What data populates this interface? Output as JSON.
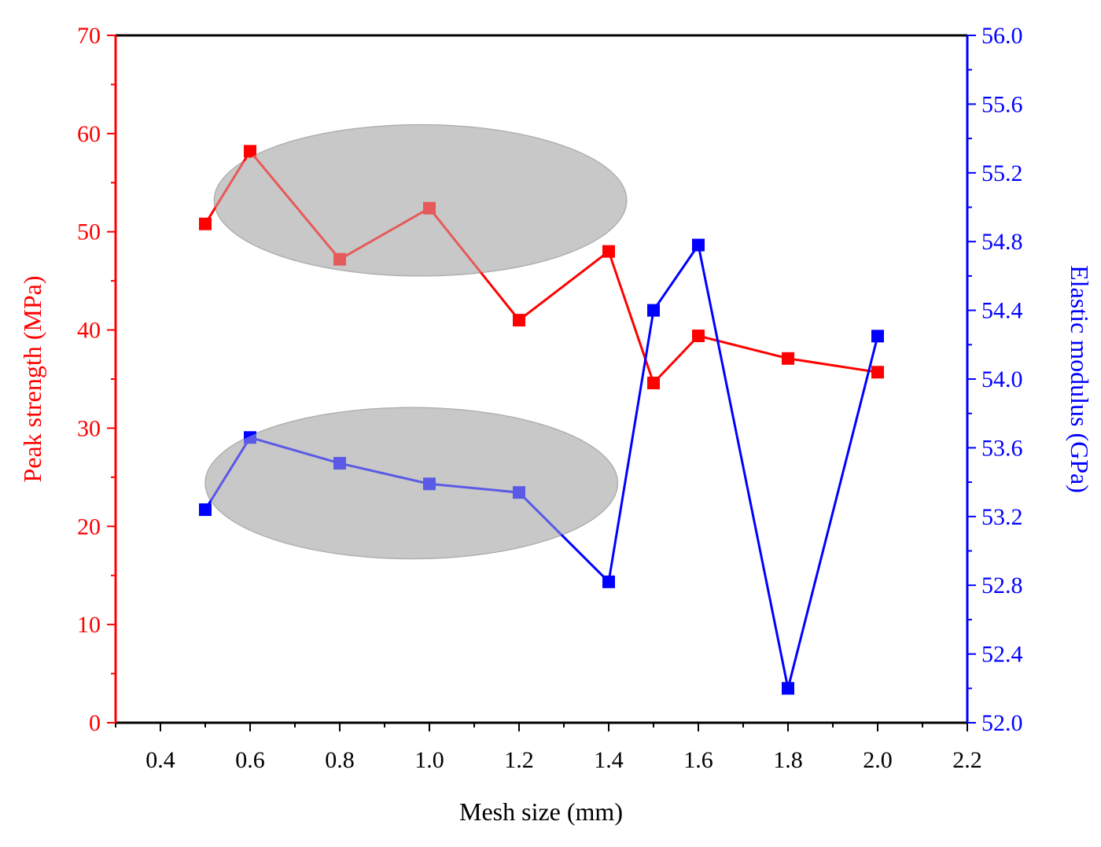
{
  "chart_data": {
    "type": "line",
    "title": "",
    "xlabel": "Mesh size (mm)",
    "ylabel_left": "Peak strength (MPa)",
    "ylabel_right": "Elastic modulus (GPa)",
    "xlim": [
      0.3,
      2.2
    ],
    "ylim_left": [
      0,
      70
    ],
    "ylim_right": [
      52.0,
      56.0
    ],
    "x_ticks": [
      "0.4",
      "0.6",
      "0.8",
      "1.0",
      "1.2",
      "1.4",
      "1.6",
      "1.8",
      "2.0",
      "2.2"
    ],
    "y_left_ticks": [
      "0",
      "10",
      "20",
      "30",
      "40",
      "50",
      "60",
      "70"
    ],
    "y_right_ticks": [
      "52.0",
      "52.4",
      "52.8",
      "53.2",
      "53.6",
      "54.0",
      "54.4",
      "54.8",
      "55.2",
      "55.6",
      "56.0"
    ],
    "x": [
      0.5,
      0.6,
      0.8,
      1.0,
      1.2,
      1.4,
      1.5,
      1.6,
      1.8,
      2.0
    ],
    "series": [
      {
        "axis": "left",
        "color": "#ff0000",
        "values": [
          50.8,
          58.2,
          47.2,
          52.4,
          41.0,
          48.0,
          34.6,
          39.4,
          37.1,
          35.7
        ]
      },
      {
        "axis": "right",
        "color": "#0000ff",
        "values": [
          53.24,
          53.66,
          53.51,
          53.39,
          53.34,
          52.82,
          54.4,
          54.78,
          52.2,
          54.25
        ]
      }
    ],
    "highlights": [
      {
        "x_center": 0.98,
        "y_center_left": 53.2,
        "x_radius": 0.46,
        "y_radius_left": 7.7
      },
      {
        "x_center": 0.96,
        "y_center_left": 24.4,
        "x_radius": 0.46,
        "y_radius_left": 7.7
      }
    ],
    "grid": false,
    "legend": "none"
  }
}
